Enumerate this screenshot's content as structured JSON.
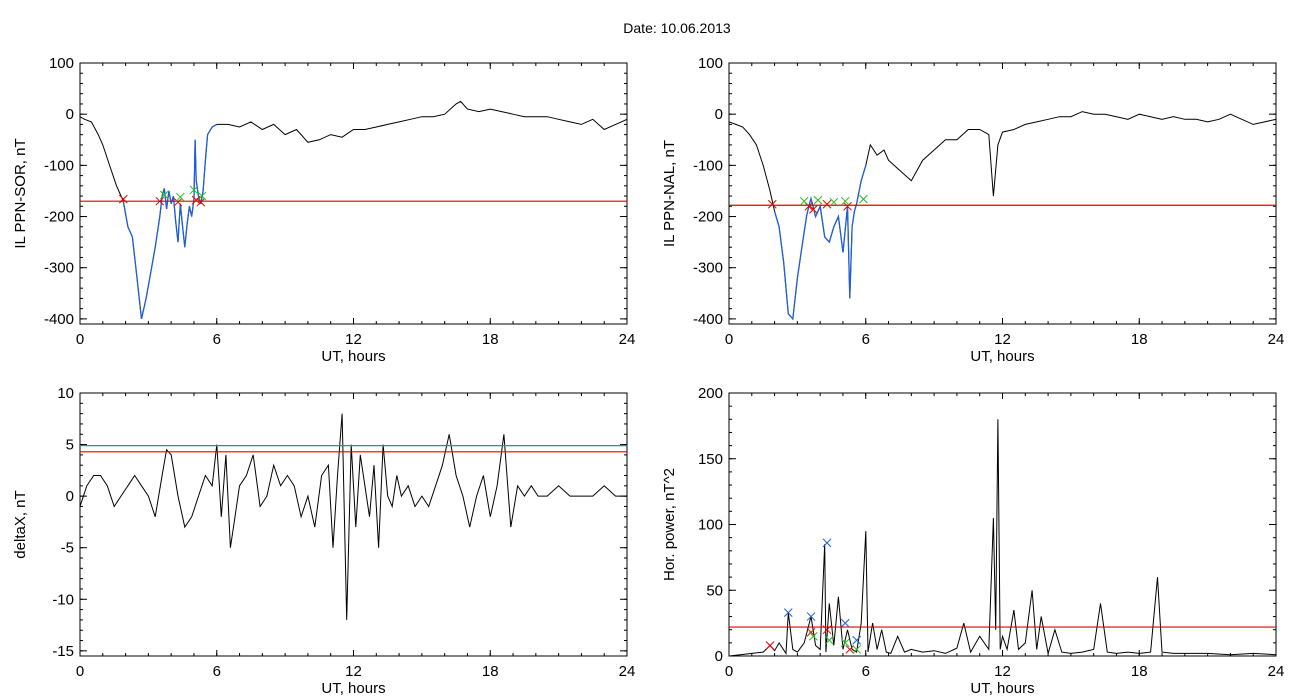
{
  "figure": {
    "title": "Date:  10.06.2013"
  },
  "colors": {
    "trace": "#000000",
    "threshold": "#e60000",
    "substorm": "#1f5fd6",
    "cyan_line": "#1f8fb3",
    "marker_red": "#e60000",
    "marker_green": "#22bb22",
    "marker_blue": "#1f5fd6"
  },
  "chart_data": [
    {
      "id": "ppn-sor",
      "type": "line",
      "xlabel": "UT, hours",
      "ylabel": "IL PPN-SOR, nT",
      "xlim": [
        0,
        24
      ],
      "ylim": [
        -410,
        100
      ],
      "xticks": [
        0,
        6,
        12,
        18,
        24
      ],
      "xtick_labels": [
        "0",
        "6",
        "12",
        "18",
        "24"
      ],
      "yticks": [
        100,
        0,
        -100,
        -200,
        -300,
        -400
      ],
      "ytick_labels": [
        "100",
        "0",
        "-100",
        "-200",
        "-300",
        "-400"
      ],
      "threshold": -170,
      "series": [
        {
          "name": "IL",
          "x": [
            0,
            0.2,
            0.5,
            0.8,
            1.0,
            1.3,
            1.6,
            1.9,
            2.1,
            2.3,
            2.5,
            2.7,
            2.9,
            3.1,
            3.3,
            3.5,
            3.6,
            3.7,
            3.8,
            3.9,
            4.0,
            4.1,
            4.2,
            4.3,
            4.4,
            4.5,
            4.6,
            4.7,
            4.8,
            4.9,
            5.0,
            5.05,
            5.1,
            5.2,
            5.3,
            5.4,
            5.5,
            5.6,
            5.8,
            6.0,
            6.5,
            7.0,
            7.5,
            8.0,
            8.5,
            9.0,
            9.5,
            10.0,
            10.5,
            11.0,
            11.5,
            12.0,
            12.5,
            13.0,
            13.5,
            14.0,
            14.5,
            15.0,
            15.5,
            16.0,
            16.5,
            16.7,
            17.0,
            17.5,
            18.0,
            18.5,
            19.0,
            19.5,
            20.0,
            20.5,
            21.0,
            21.5,
            22.0,
            22.5,
            23.0,
            23.5,
            24.0
          ],
          "y": [
            -5,
            -10,
            -15,
            -40,
            -60,
            -100,
            -140,
            -170,
            -220,
            -240,
            -320,
            -400,
            -360,
            -310,
            -260,
            -200,
            -160,
            -145,
            -185,
            -150,
            -175,
            -160,
            -210,
            -250,
            -175,
            -220,
            -260,
            -215,
            -180,
            -200,
            -165,
            -50,
            -130,
            -160,
            -175,
            -150,
            -90,
            -40,
            -25,
            -20,
            -20,
            -25,
            -15,
            -30,
            -20,
            -40,
            -30,
            -55,
            -50,
            -40,
            -45,
            -30,
            -30,
            -25,
            -20,
            -15,
            -10,
            -5,
            -5,
            0,
            20,
            25,
            10,
            5,
            10,
            5,
            0,
            -5,
            -5,
            -5,
            -10,
            -15,
            -20,
            -10,
            -30,
            -20,
            -10
          ]
        }
      ],
      "substorm_x": [
        1.9,
        6.0
      ],
      "markers": {
        "red": {
          "x": [
            1.9,
            3.5,
            4.3,
            5.1,
            5.3
          ],
          "y": [
            -166,
            -170,
            -172,
            -168,
            -172
          ]
        },
        "green": {
          "x": [
            3.7,
            4.4,
            5.0,
            5.35
          ],
          "y": [
            -158,
            -162,
            -148,
            -160
          ]
        }
      }
    },
    {
      "id": "ppn-nal",
      "type": "line",
      "xlabel": "UT, hours",
      "ylabel": "IL PPN-NAL, nT",
      "xlim": [
        0,
        24
      ],
      "ylim": [
        -410,
        100
      ],
      "xticks": [
        0,
        6,
        12,
        18,
        24
      ],
      "xtick_labels": [
        "0",
        "6",
        "12",
        "18",
        "24"
      ],
      "yticks": [
        100,
        0,
        -100,
        -200,
        -300,
        -400
      ],
      "ytick_labels": [
        "100",
        "0",
        "-100",
        "-200",
        "-300",
        "-400"
      ],
      "threshold": -178,
      "series": [
        {
          "name": "IL",
          "x": [
            0,
            0.3,
            0.6,
            0.9,
            1.2,
            1.5,
            1.8,
            2.0,
            2.2,
            2.4,
            2.6,
            2.8,
            3.0,
            3.2,
            3.4,
            3.5,
            3.6,
            3.8,
            4.0,
            4.2,
            4.4,
            4.6,
            4.8,
            5.0,
            5.2,
            5.3,
            5.4,
            5.5,
            5.6,
            5.8,
            6.0,
            6.2,
            6.5,
            6.8,
            7.0,
            7.5,
            8.0,
            8.5,
            9.0,
            9.5,
            10.0,
            10.5,
            11.0,
            11.4,
            11.6,
            11.8,
            12.0,
            12.5,
            13.0,
            13.5,
            14.0,
            14.5,
            15.0,
            15.5,
            16.0,
            16.5,
            17.0,
            17.5,
            18.0,
            18.5,
            19.0,
            19.5,
            20.0,
            20.5,
            21.0,
            21.5,
            22.0,
            22.5,
            23.0,
            23.5,
            24.0
          ],
          "y": [
            -15,
            -20,
            -25,
            -40,
            -60,
            -100,
            -150,
            -190,
            -220,
            -290,
            -390,
            -400,
            -320,
            -260,
            -200,
            -180,
            -165,
            -200,
            -180,
            -240,
            -250,
            -220,
            -200,
            -270,
            -180,
            -360,
            -220,
            -190,
            -175,
            -130,
            -100,
            -60,
            -80,
            -70,
            -90,
            -110,
            -130,
            -90,
            -70,
            -50,
            -50,
            -30,
            -30,
            -40,
            -160,
            -60,
            -35,
            -30,
            -20,
            -15,
            -10,
            -5,
            -5,
            5,
            0,
            0,
            -5,
            -10,
            0,
            -5,
            -10,
            -5,
            -10,
            -10,
            -15,
            -10,
            0,
            -10,
            -20,
            -15,
            -10
          ]
        }
      ],
      "substorm_x": [
        1.9,
        6.0
      ],
      "markers": {
        "red": {
          "x": [
            1.9,
            3.5,
            3.7,
            4.3,
            5.2
          ],
          "y": [
            -176,
            -180,
            -186,
            -176,
            -180
          ]
        },
        "green": {
          "x": [
            3.3,
            3.9,
            4.6,
            5.1,
            5.9
          ],
          "y": [
            -170,
            -168,
            -172,
            -170,
            -166
          ]
        }
      }
    },
    {
      "id": "deltax",
      "type": "line",
      "xlabel": "UT, hours",
      "ylabel": "deltaX, nT",
      "xlim": [
        0,
        24
      ],
      "ylim": [
        -15.5,
        10
      ],
      "xticks": [
        0,
        6,
        12,
        18,
        24
      ],
      "xtick_labels": [
        "0",
        "6",
        "12",
        "18",
        "24"
      ],
      "yticks": [
        10,
        5,
        0,
        -5,
        -10,
        -15
      ],
      "ytick_labels": [
        "10",
        "5",
        "0",
        "-5",
        "-10",
        "-15"
      ],
      "threshold": 4.3,
      "threshold2": 4.9,
      "series": [
        {
          "name": "deltaX",
          "x": [
            0,
            0.3,
            0.6,
            0.9,
            1.2,
            1.5,
            1.8,
            2.1,
            2.4,
            2.7,
            3.0,
            3.3,
            3.6,
            3.8,
            4.0,
            4.3,
            4.6,
            4.9,
            5.2,
            5.5,
            5.8,
            6.0,
            6.2,
            6.4,
            6.6,
            6.8,
            7.0,
            7.3,
            7.6,
            7.9,
            8.2,
            8.5,
            8.8,
            9.1,
            9.4,
            9.7,
            10.0,
            10.3,
            10.6,
            10.9,
            11.1,
            11.3,
            11.5,
            11.7,
            11.9,
            12.1,
            12.3,
            12.5,
            12.7,
            12.9,
            13.1,
            13.3,
            13.5,
            13.7,
            13.9,
            14.1,
            14.4,
            14.7,
            15.0,
            15.3,
            15.6,
            15.9,
            16.2,
            16.5,
            16.8,
            17.1,
            17.4,
            17.7,
            18.0,
            18.3,
            18.6,
            18.9,
            19.2,
            19.5,
            19.8,
            20.1,
            20.5,
            21.0,
            21.5,
            22.0,
            22.5,
            23.0,
            23.5,
            24.0
          ],
          "y": [
            -1,
            1,
            2,
            2,
            1,
            -1,
            0,
            1,
            2,
            1,
            0,
            -2,
            2,
            4.5,
            4,
            0,
            -3,
            -2,
            0,
            2,
            1,
            5,
            -2,
            4,
            -5,
            -2,
            1,
            2,
            4,
            -1,
            0,
            3,
            1,
            2,
            1,
            -2,
            0,
            -3,
            2,
            3,
            -5,
            2,
            8,
            -12,
            5,
            -3,
            4,
            1,
            -2,
            3,
            -5,
            5,
            0,
            -1,
            2,
            0,
            1,
            -1,
            0,
            -1,
            1,
            3,
            6,
            2,
            0,
            -3,
            0,
            2,
            -2,
            1,
            6,
            -3,
            1,
            0,
            1,
            0,
            0,
            1,
            0,
            0,
            0,
            1,
            0,
            0
          ]
        }
      ]
    },
    {
      "id": "hor-power",
      "type": "line",
      "xlabel": "UT, hours",
      "ylabel": "Hor. power, nT^2",
      "xlim": [
        0,
        24
      ],
      "ylim": [
        0,
        200
      ],
      "xticks": [
        0,
        6,
        12,
        18,
        24
      ],
      "xtick_labels": [
        "0",
        "6",
        "12",
        "18",
        "24"
      ],
      "yticks": [
        200,
        150,
        100,
        50,
        0
      ],
      "ytick_labels": [
        "200",
        "150",
        "100",
        "50",
        "0"
      ],
      "threshold": 22,
      "series": [
        {
          "name": "power",
          "x": [
            0,
            0.5,
            1.0,
            1.5,
            1.8,
            2.0,
            2.2,
            2.5,
            2.6,
            2.8,
            3.0,
            3.3,
            3.6,
            3.8,
            4.0,
            4.2,
            4.25,
            4.4,
            4.6,
            4.8,
            5.0,
            5.2,
            5.4,
            5.6,
            5.8,
            6.0,
            6.1,
            6.3,
            6.5,
            6.7,
            6.9,
            7.1,
            7.4,
            7.7,
            8.0,
            8.5,
            9.0,
            9.5,
            10.0,
            10.3,
            10.6,
            11.0,
            11.4,
            11.6,
            11.7,
            11.8,
            11.9,
            12.0,
            12.2,
            12.5,
            12.7,
            13.0,
            13.3,
            13.5,
            13.7,
            14.0,
            14.3,
            14.6,
            15.0,
            15.5,
            16.0,
            16.3,
            16.6,
            17.0,
            17.5,
            18.0,
            18.5,
            18.8,
            19.0,
            19.5,
            20.0,
            21.0,
            22.0,
            23.0,
            24.0
          ],
          "y": [
            0,
            1,
            2,
            3,
            8,
            4,
            10,
            2,
            33,
            5,
            3,
            10,
            30,
            8,
            5,
            85,
            3,
            40,
            8,
            45,
            5,
            20,
            5,
            3,
            25,
            95,
            3,
            25,
            5,
            20,
            3,
            2,
            15,
            3,
            5,
            3,
            4,
            2,
            6,
            25,
            3,
            15,
            5,
            105,
            20,
            180,
            5,
            15,
            5,
            35,
            5,
            10,
            50,
            5,
            30,
            2,
            20,
            3,
            2,
            3,
            5,
            40,
            3,
            2,
            3,
            2,
            3,
            60,
            3,
            2,
            2,
            2,
            1,
            2,
            1
          ]
        }
      ],
      "markers": {
        "red": {
          "x": [
            1.8,
            3.6,
            4.3,
            5.3
          ],
          "y": [
            8,
            18,
            20,
            5
          ]
        },
        "green": {
          "x": [
            3.7,
            4.4,
            5.1,
            5.6
          ],
          "y": [
            15,
            12,
            10,
            5
          ]
        },
        "blue": {
          "x": [
            2.6,
            3.6,
            4.3,
            5.1,
            5.6
          ],
          "y": [
            33,
            30,
            86,
            25,
            12
          ]
        }
      }
    }
  ]
}
